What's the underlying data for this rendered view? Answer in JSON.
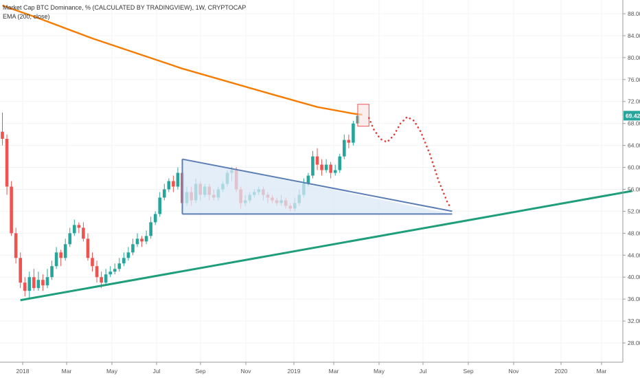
{
  "legend": {
    "title": "Market Cap BTC Dominance, % (CALCULATED BY TRADINGVIEW), 1W, CRYPTOCAP",
    "indicator": "EMA (200, close)"
  },
  "price_label": "69.42",
  "colors": {
    "up": "#26a69a",
    "down": "#ef5350",
    "ema": "#f57c00",
    "triangle": "#5b7fb5",
    "triangle_fill": "#dbe8f7",
    "support": "#1e9e7a",
    "highlight": "#ef5350",
    "highlight_fill": "#fbe3e3",
    "projection": "#e53935",
    "price_badge": "#26a69a"
  },
  "chart_data": {
    "type": "candlestick",
    "y_ticks": [
      "88.00",
      "84.00",
      "80.00",
      "76.00",
      "72.00",
      "68.00",
      "64.00",
      "60.00",
      "56.00",
      "52.00",
      "48.00",
      "44.00",
      "40.00",
      "36.00",
      "32.00",
      "28.00"
    ],
    "x_ticks": [
      "2018",
      "Mar",
      "May",
      "Jul",
      "Sep",
      "Nov",
      "2019",
      "Mar",
      "May",
      "Jul",
      "Sep",
      "Nov",
      "2020",
      "Mar"
    ],
    "ylim": [
      24.5,
      90.5
    ],
    "candles": [
      [
        66.5,
        65.2,
        70.0,
        64.0
      ],
      [
        65.2,
        56.5,
        66.0,
        55.0
      ],
      [
        56.5,
        48.0,
        57.5,
        47.5
      ],
      [
        48.0,
        43.5,
        49.0,
        42.5
      ],
      [
        43.5,
        39.0,
        44.5,
        38.0
      ],
      [
        39.0,
        37.5,
        40.0,
        36.5
      ],
      [
        37.5,
        40.0,
        41.0,
        36.0
      ],
      [
        40.0,
        38.0,
        41.5,
        37.5
      ],
      [
        38.0,
        39.5,
        41.0,
        37.5
      ],
      [
        39.5,
        38.5,
        40.5,
        37.5
      ],
      [
        38.5,
        40.0,
        41.5,
        38.0
      ],
      [
        40.0,
        42.0,
        43.0,
        39.5
      ],
      [
        42.0,
        44.5,
        45.5,
        41.5
      ],
      [
        44.5,
        43.5,
        45.0,
        42.0
      ],
      [
        43.5,
        46.0,
        47.0,
        43.0
      ],
      [
        46.0,
        48.0,
        49.0,
        45.5
      ],
      [
        48.0,
        49.5,
        50.5,
        47.5
      ],
      [
        49.5,
        49.0,
        50.0,
        48.0
      ],
      [
        49.0,
        47.0,
        50.0,
        46.5
      ],
      [
        47.0,
        43.5,
        48.0,
        43.0
      ],
      [
        43.5,
        42.0,
        44.5,
        41.0
      ],
      [
        42.0,
        40.0,
        43.0,
        39.0
      ],
      [
        40.0,
        39.0,
        41.0,
        38.0
      ],
      [
        39.0,
        40.5,
        41.5,
        38.5
      ],
      [
        40.5,
        41.0,
        42.0,
        40.0
      ],
      [
        41.0,
        41.5,
        42.5,
        40.5
      ],
      [
        41.5,
        42.5,
        43.5,
        41.0
      ],
      [
        42.5,
        43.5,
        44.5,
        42.0
      ],
      [
        43.5,
        44.5,
        45.5,
        43.0
      ],
      [
        44.5,
        46.0,
        47.0,
        44.0
      ],
      [
        46.0,
        47.0,
        48.0,
        45.5
      ],
      [
        47.0,
        46.5,
        47.5,
        45.5
      ],
      [
        46.5,
        47.5,
        48.5,
        46.0
      ],
      [
        47.5,
        50.0,
        51.0,
        47.0
      ],
      [
        50.0,
        51.5,
        52.0,
        49.5
      ],
      [
        51.5,
        54.5,
        55.5,
        51.0
      ],
      [
        54.5,
        56.0,
        57.0,
        54.0
      ],
      [
        56.0,
        57.5,
        58.0,
        55.5
      ],
      [
        57.5,
        56.5,
        58.5,
        55.5
      ],
      [
        56.5,
        59.0,
        60.0,
        56.0
      ],
      [
        59.0,
        53.5,
        59.5,
        52.5
      ],
      [
        53.5,
        55.5,
        56.5,
        53.0
      ],
      [
        55.5,
        54.0,
        56.5,
        53.0
      ],
      [
        54.0,
        57.0,
        58.0,
        53.5
      ],
      [
        57.0,
        55.0,
        57.5,
        54.0
      ],
      [
        55.0,
        56.5,
        57.0,
        54.5
      ],
      [
        56.5,
        55.0,
        57.0,
        54.0
      ],
      [
        55.0,
        54.5,
        56.0,
        54.0
      ],
      [
        54.5,
        56.0,
        56.5,
        54.0
      ],
      [
        56.0,
        57.0,
        57.5,
        55.5
      ],
      [
        57.0,
        59.0,
        59.5,
        56.5
      ],
      [
        59.0,
        59.5,
        60.0,
        57.5
      ],
      [
        59.5,
        56.0,
        60.0,
        55.5
      ],
      [
        56.0,
        53.5,
        56.5,
        52.5
      ],
      [
        53.5,
        54.0,
        55.0,
        53.0
      ],
      [
        54.0,
        55.0,
        55.5,
        53.5
      ],
      [
        55.0,
        55.5,
        56.0,
        54.5
      ],
      [
        55.5,
        56.0,
        56.5,
        55.0
      ],
      [
        56.0,
        55.0,
        56.5,
        54.0
      ],
      [
        55.0,
        54.5,
        55.5,
        53.5
      ],
      [
        54.5,
        54.0,
        55.0,
        53.5
      ],
      [
        54.0,
        53.5,
        54.5,
        53.0
      ],
      [
        53.5,
        54.0,
        55.0,
        53.0
      ],
      [
        54.0,
        53.0,
        54.5,
        52.5
      ],
      [
        53.0,
        52.5,
        53.5,
        52.0
      ],
      [
        52.5,
        53.5,
        54.5,
        52.0
      ],
      [
        53.5,
        55.0,
        56.0,
        53.0
      ],
      [
        55.0,
        57.0,
        58.0,
        54.5
      ],
      [
        57.0,
        58.5,
        59.0,
        56.5
      ],
      [
        58.5,
        62.0,
        63.0,
        58.0
      ],
      [
        62.0,
        60.5,
        63.5,
        59.5
      ],
      [
        60.5,
        59.5,
        61.5,
        58.5
      ],
      [
        59.5,
        60.5,
        61.5,
        59.0
      ],
      [
        60.5,
        59.0,
        61.0,
        58.0
      ],
      [
        59.0,
        59.5,
        60.5,
        58.5
      ],
      [
        59.5,
        62.0,
        62.5,
        59.0
      ],
      [
        62.0,
        65.0,
        66.0,
        61.5
      ],
      [
        65.0,
        64.5,
        66.0,
        63.5
      ],
      [
        64.5,
        68.0,
        68.5,
        64.0
      ],
      [
        68.0,
        69.42,
        70.0,
        67.5
      ]
    ],
    "ema": [
      [
        0,
        89.5
      ],
      [
        8,
        87.2
      ],
      [
        20,
        83.5
      ],
      [
        40,
        78.0
      ],
      [
        60,
        73.3
      ],
      [
        70,
        71.0
      ],
      [
        78,
        69.8
      ],
      [
        80,
        69.6
      ]
    ],
    "triangle": [
      [
        40,
        61.5
      ],
      [
        40,
        51.5
      ],
      [
        100,
        51.5
      ]
    ],
    "triangle_upper_end": [
      100,
      52.0
    ],
    "support_line": [
      [
        4,
        35.8
      ],
      [
        140,
        55.7
      ]
    ],
    "highlight_box": [
      [
        79,
        67.5
      ],
      [
        81.5,
        71.5
      ]
    ],
    "projection": [
      [
        81.5,
        69.0
      ],
      [
        82.5,
        67.0
      ],
      [
        84,
        65.2
      ],
      [
        85.5,
        64.6
      ],
      [
        87,
        65.8
      ],
      [
        88.5,
        68.0
      ],
      [
        90,
        69.2
      ],
      [
        91.5,
        68.5
      ],
      [
        93,
        66.5
      ],
      [
        95,
        62.5
      ],
      [
        97,
        57.5
      ],
      [
        99,
        53.5
      ],
      [
        99.8,
        52.5
      ]
    ]
  }
}
